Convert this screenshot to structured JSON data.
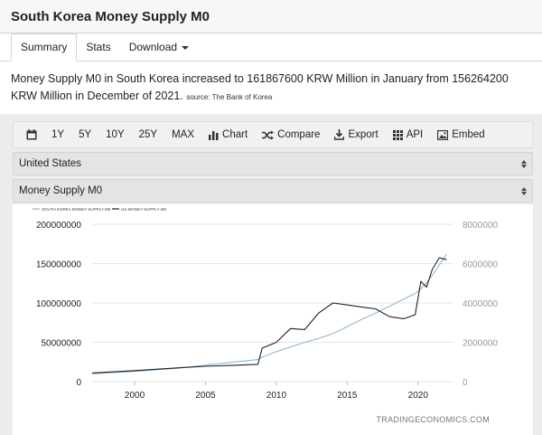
{
  "page": {
    "title": "South Korea Money Supply M0"
  },
  "tabs": [
    {
      "label": "Summary",
      "active": true
    },
    {
      "label": "Stats",
      "active": false
    },
    {
      "label": "Download",
      "active": false
    }
  ],
  "description": {
    "text": "Money Supply M0 in South Korea increased to 161867600 KRW Million in January from 156264200 KRW Million in December of 2021.",
    "source": "source: The Bank of Korea"
  },
  "toolbar": {
    "range_1y": "1Y",
    "range_5y": "5Y",
    "range_10y": "10Y",
    "range_25y": "25Y",
    "range_max": "MAX",
    "chart": "Chart",
    "compare": "Compare",
    "export": "Export",
    "api": "API",
    "embed": "Embed"
  },
  "selects": {
    "country": "United States",
    "indicator": "Money Supply M0"
  },
  "colors": {
    "series_kr": "#8fb8d4",
    "series_us": "#222222"
  },
  "chart_data": {
    "type": "line",
    "watermark": "TRADINGECONOMICS.COM",
    "x": [
      1997,
      2000,
      2003,
      2005,
      2007,
      2008.7,
      2009,
      2010,
      2011,
      2012,
      2013,
      2014,
      2015,
      2016,
      2017,
      2018,
      2019,
      2019.8,
      2020.2,
      2020.6,
      2021,
      2021.5,
      2022
    ],
    "xticks": [
      "2000",
      "2005",
      "2010",
      "2015",
      "2020"
    ],
    "xlim": [
      1997,
      2022.5
    ],
    "left_axis": {
      "ticks": [
        "0",
        "50000000",
        "100000000",
        "150000000",
        "200000000"
      ],
      "ylim": [
        0,
        200000000
      ]
    },
    "right_axis": {
      "ticks": [
        "0",
        "2000000",
        "4000000",
        "6000000",
        "8000000"
      ],
      "ylim": [
        0,
        8000000
      ]
    },
    "series": [
      {
        "name": "SOUTH KOREA MONEY SUPPLY M0",
        "axis": "left",
        "values": [
          10000000,
          13000000,
          17000000,
          21000000,
          25000000,
          28000000,
          31000000,
          38000000,
          44000000,
          50000000,
          55000000,
          61000000,
          70000000,
          79000000,
          87000000,
          96000000,
          105000000,
          112000000,
          118000000,
          126000000,
          135000000,
          148000000,
          161867600
        ]
      },
      {
        "name": "US MONEY SUPPLY M0",
        "axis": "right",
        "values": [
          440000,
          560000,
          700000,
          780000,
          830000,
          880000,
          1700000,
          2000000,
          2700000,
          2650000,
          3500000,
          4000000,
          3900000,
          3800000,
          3700000,
          3300000,
          3200000,
          3400000,
          5100000,
          4800000,
          5700000,
          6300000,
          6200000
        ]
      }
    ]
  }
}
